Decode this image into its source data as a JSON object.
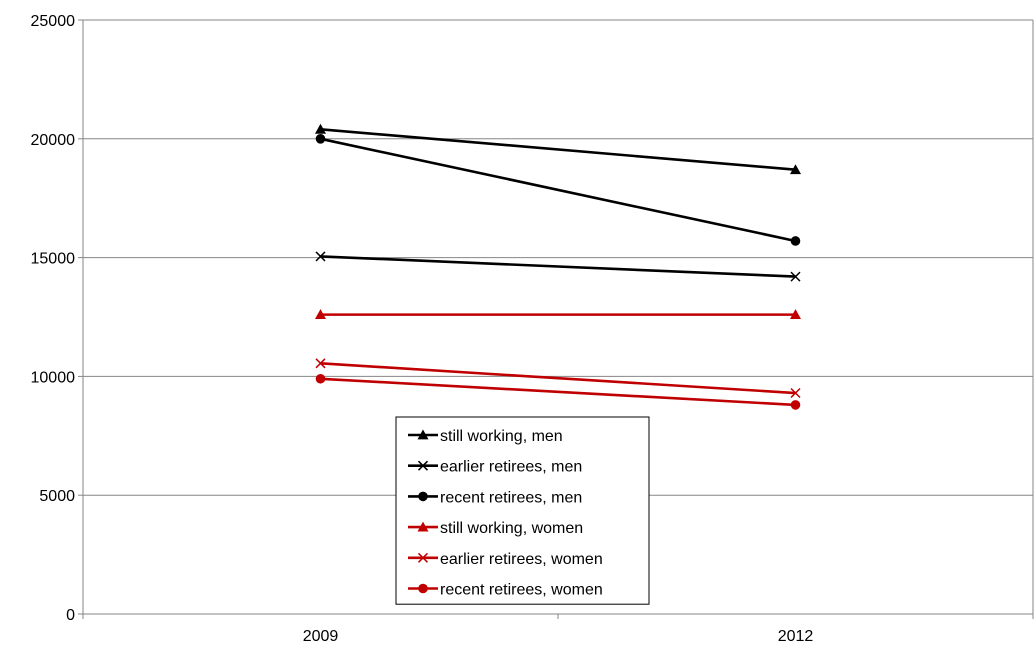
{
  "chart_data": {
    "type": "line",
    "title": "",
    "xlabel": "",
    "ylabel": "",
    "categories": [
      "2009",
      "2012"
    ],
    "ylim": [
      0,
      25000
    ],
    "yticks": [
      0,
      5000,
      10000,
      15000,
      20000,
      25000
    ],
    "grid": true,
    "legend_position": "center-bottom",
    "series": [
      {
        "name": "still working, men",
        "values": [
          20400,
          18700
        ],
        "color": "#000000",
        "marker": "triangle"
      },
      {
        "name": "earlier retirees, men",
        "values": [
          15050,
          14200
        ],
        "color": "#000000",
        "marker": "x"
      },
      {
        "name": "recent retirees, men",
        "values": [
          20000,
          15700
        ],
        "color": "#000000",
        "marker": "circle"
      },
      {
        "name": "still working, women",
        "values": [
          12600,
          12600
        ],
        "color": "#c00000",
        "marker": "triangle"
      },
      {
        "name": "earlier retirees, women",
        "values": [
          10550,
          9300
        ],
        "color": "#c00000",
        "marker": "x"
      },
      {
        "name": "recent retirees, women",
        "values": [
          9900,
          8800
        ],
        "color": "#c00000",
        "marker": "circle"
      }
    ]
  }
}
